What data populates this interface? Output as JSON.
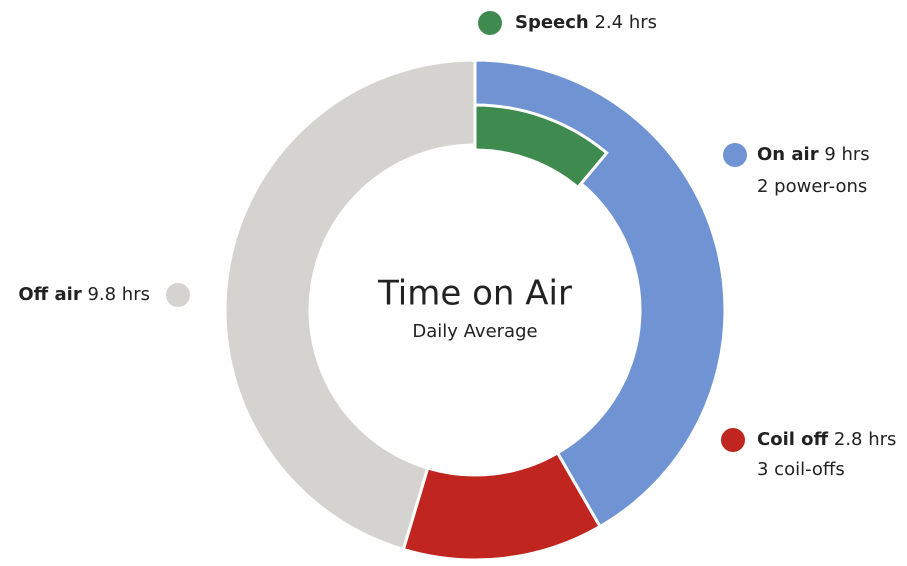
{
  "chart_data": {
    "type": "donut",
    "title": "Time on Air",
    "subtitle": "Daily Average",
    "slices": [
      {
        "name": "On air",
        "value": 9,
        "value_label": "9 hrs",
        "note": "2 power-ons",
        "color": "#6f93d3"
      },
      {
        "name": "Coil off",
        "value": 2.8,
        "value_label": "2.8 hrs",
        "note": "3 coil-offs",
        "color": "#c0251f"
      },
      {
        "name": "Off air",
        "value": 9.8,
        "value_label": "9.8 hrs",
        "color": "#d4d3cf"
      }
    ],
    "inner": {
      "name": "Speech",
      "value": 2.4,
      "value_label": "2.4 hrs",
      "color": "#3f8a4e"
    }
  }
}
